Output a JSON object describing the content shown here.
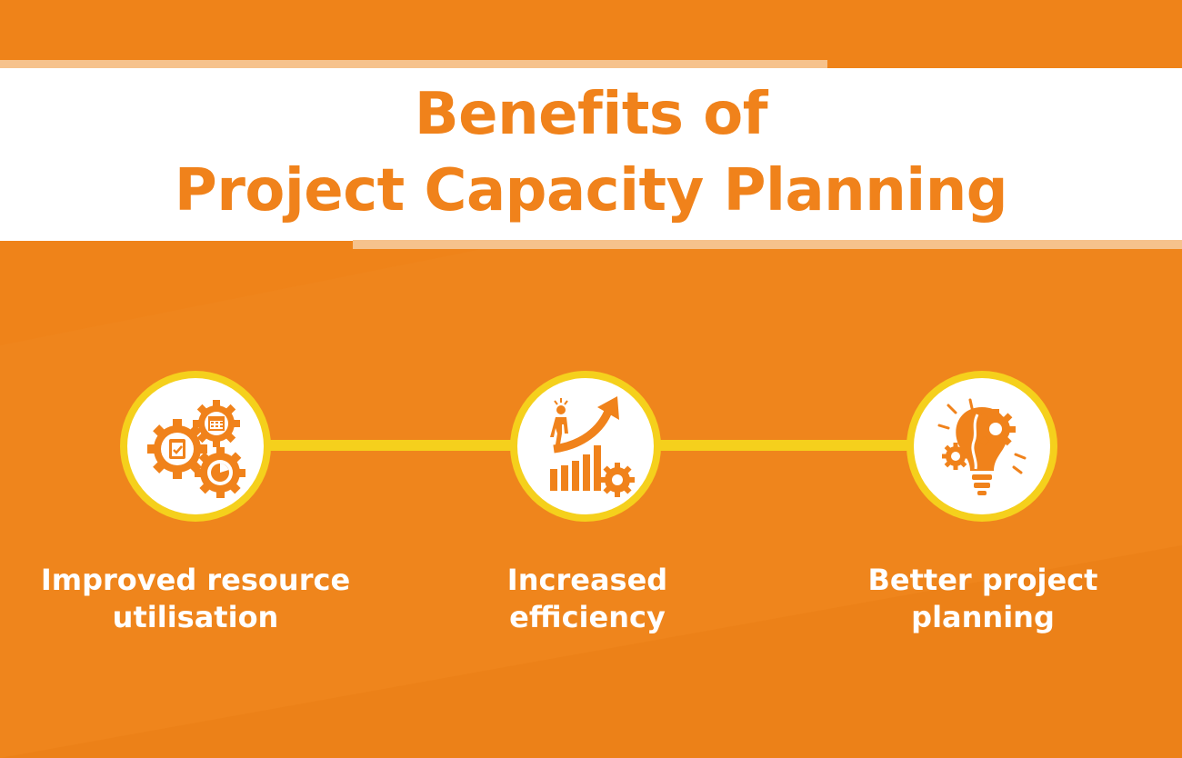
{
  "title": {
    "line1": "Benefits of",
    "line2": "Project Capacity Planning"
  },
  "colors": {
    "background": "#ef8319",
    "banner": "#ffffff",
    "title_text": "#f0821b",
    "connector": "#f5d01c",
    "icon": "#f0821b",
    "label_text": "#ffffff"
  },
  "benefits": [
    {
      "icon": "gears-with-clipboard-calendar-chart-icon",
      "line1": "Improved resource",
      "line2": "utilisation"
    },
    {
      "icon": "person-climbing-growth-chart-icon",
      "line1": "Increased",
      "line2": "efficiency"
    },
    {
      "icon": "lightbulb-with-gears-icon",
      "line1": "Better project",
      "line2": "planning"
    }
  ]
}
